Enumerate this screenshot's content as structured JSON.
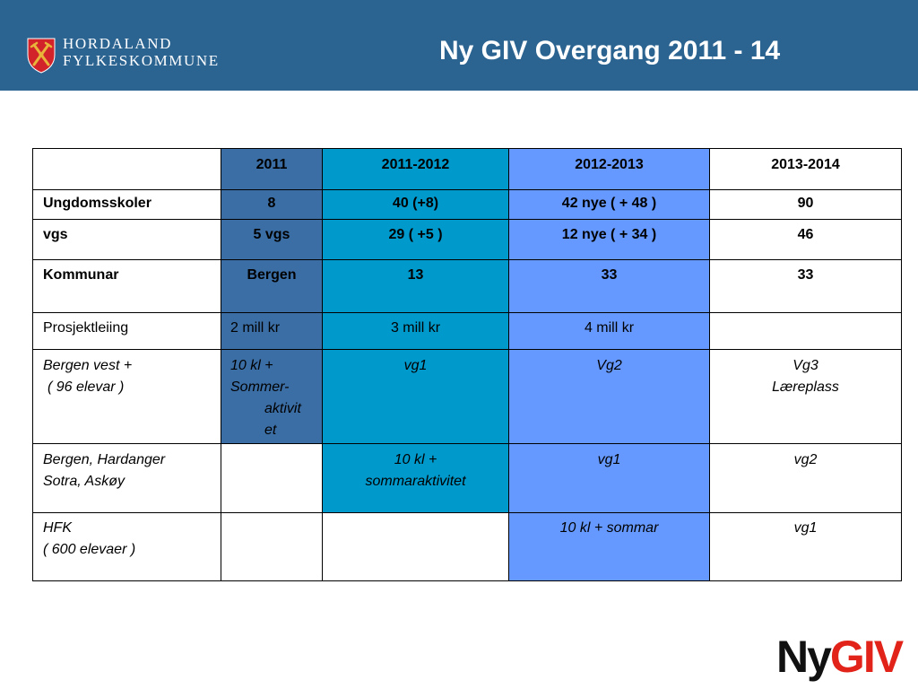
{
  "colors": {
    "header_bar": "#2b6391",
    "col_2011": "#3b6ea5",
    "col_2011_2012": "#0099cc",
    "col_2012_2013": "#6699ff",
    "brand_red": "#e2231a",
    "shield_red": "#d2232a",
    "shield_emblem": "#e8b53a"
  },
  "header": {
    "title": "Ny GIV Overgang 2011 - 14",
    "logo_line1": "HORDALAND",
    "logo_line2": "FYLKESKOMMUNE",
    "logo_icon": "coat-of-arms-icon"
  },
  "table": {
    "columns": [
      "2011",
      "2011-2012",
      "2012-2013",
      "2013-2014"
    ],
    "rows": [
      {
        "cells": [
          [
            "Ungdomsskoler"
          ],
          [
            "8"
          ],
          [
            "40 (+8)"
          ],
          [
            "42 nye ( + 48 )"
          ],
          [
            "90"
          ]
        ]
      },
      {
        "cells": [
          [
            "vgs"
          ],
          [
            "5 vgs"
          ],
          [
            "29 ( +5 )"
          ],
          [
            "12 nye ( + 34 )"
          ],
          [
            "46"
          ]
        ]
      },
      {
        "cells": [
          [
            "Kommunar"
          ],
          [
            "Bergen"
          ],
          [
            "13"
          ],
          [
            "33"
          ],
          [
            "33"
          ]
        ]
      },
      {
        "cells": [
          [
            "Prosjektleiing"
          ],
          [
            "2 mill kr"
          ],
          [
            "3 mill kr"
          ],
          [
            "4 mill kr"
          ],
          []
        ]
      },
      {
        "cells": [
          [
            "Bergen vest +",
            "( 96 elevar )"
          ],
          [
            "10 kl +",
            "Sommer-",
            "aktivit",
            "et"
          ],
          [
            "vg1"
          ],
          [
            "Vg2"
          ],
          [
            "Vg3",
            "Læreplass"
          ]
        ]
      },
      {
        "cells": [
          [
            "Bergen, Hardanger",
            "Sotra, Askøy"
          ],
          [],
          [
            "10 kl +",
            "sommaraktivitet"
          ],
          [
            "vg1"
          ],
          [
            "vg2"
          ]
        ]
      },
      {
        "cells": [
          [
            "HFK",
            "( 600 elevaer )"
          ],
          [],
          [],
          [
            "10 kl + sommar"
          ],
          [
            "vg1"
          ]
        ]
      }
    ]
  },
  "brand": {
    "ny": "Ny",
    "giv": "GIV"
  }
}
